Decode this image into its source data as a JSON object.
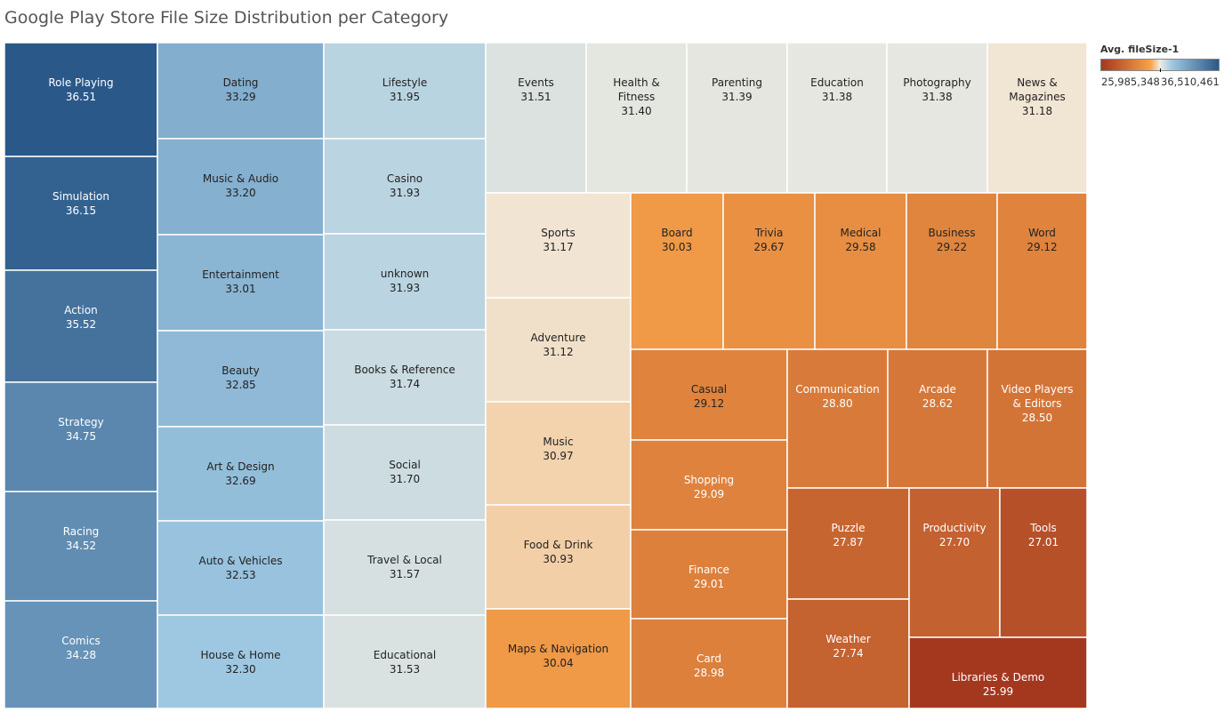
{
  "title": "Google Play Store File Size Distribution per Category",
  "legend": {
    "title": "Avg. fileSize-1",
    "min_label": "25,985,348",
    "max_label": "36,510,461",
    "colors": {
      "low": "#a3381f",
      "mid_low": "#f7a24a",
      "mid": "#f0ebe0",
      "mid_high": "#9ec8e2",
      "high": "#2a5888"
    }
  },
  "chart_data": {
    "type": "treemap",
    "value_label": "Avg. fileSize-1",
    "color_range": [
      25.99,
      36.51
    ],
    "items": [
      {
        "label": "Role Playing",
        "value": "36.51"
      },
      {
        "label": "Simulation",
        "value": "36.15"
      },
      {
        "label": "Action",
        "value": "35.52"
      },
      {
        "label": "Strategy",
        "value": "34.75"
      },
      {
        "label": "Racing",
        "value": "34.52"
      },
      {
        "label": "Comics",
        "value": "34.28"
      },
      {
        "label": "Dating",
        "value": "33.29"
      },
      {
        "label": "Music & Audio",
        "value": "33.20"
      },
      {
        "label": "Entertainment",
        "value": "33.01"
      },
      {
        "label": "Beauty",
        "value": "32.85"
      },
      {
        "label": "Art & Design",
        "value": "32.69"
      },
      {
        "label": "Auto & Vehicles",
        "value": "32.53"
      },
      {
        "label": "House & Home",
        "value": "32.30"
      },
      {
        "label": "Lifestyle",
        "value": "31.95"
      },
      {
        "label": "Casino",
        "value": "31.93"
      },
      {
        "label": "unknown",
        "value": "31.93"
      },
      {
        "label": "Books & Reference",
        "value": "31.74"
      },
      {
        "label": "Social",
        "value": "31.70"
      },
      {
        "label": "Travel & Local",
        "value": "31.57"
      },
      {
        "label": "Educational",
        "value": "31.53"
      },
      {
        "label": "Events",
        "value": "31.51"
      },
      {
        "label": "Health & Fitness",
        "value": "31.40"
      },
      {
        "label": "Parenting",
        "value": "31.39"
      },
      {
        "label": "Education",
        "value": "31.38"
      },
      {
        "label": "Photography",
        "value": "31.38"
      },
      {
        "label": "News & Magazines",
        "value": "31.18"
      },
      {
        "label": "Sports",
        "value": "31.17"
      },
      {
        "label": "Adventure",
        "value": "31.12"
      },
      {
        "label": "Music",
        "value": "30.97"
      },
      {
        "label": "Food & Drink",
        "value": "30.93"
      },
      {
        "label": "Maps & Navigation",
        "value": "30.04"
      },
      {
        "label": "Board",
        "value": "30.03"
      },
      {
        "label": "Trivia",
        "value": "29.67"
      },
      {
        "label": "Medical",
        "value": "29.58"
      },
      {
        "label": "Business",
        "value": "29.22"
      },
      {
        "label": "Word",
        "value": "29.12"
      },
      {
        "label": "Casual",
        "value": "29.12"
      },
      {
        "label": "Shopping",
        "value": "29.09"
      },
      {
        "label": "Finance",
        "value": "29.01"
      },
      {
        "label": "Card",
        "value": "28.98"
      },
      {
        "label": "Communication",
        "value": "28.80"
      },
      {
        "label": "Arcade",
        "value": "28.62"
      },
      {
        "label": "Video Players & Editors",
        "value": "28.50"
      },
      {
        "label": "Puzzle",
        "value": "27.87"
      },
      {
        "label": "Weather",
        "value": "27.74"
      },
      {
        "label": "Productivity",
        "value": "27.70"
      },
      {
        "label": "Tools",
        "value": "27.01"
      },
      {
        "label": "Libraries & Demo",
        "value": "25.99"
      }
    ]
  }
}
